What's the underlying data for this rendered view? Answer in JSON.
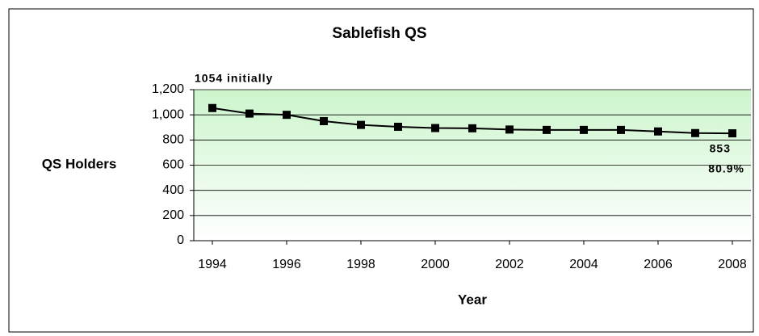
{
  "chart_data": {
    "type": "line",
    "title": "Sablefish QS",
    "ylabel": "QS Holders",
    "xlabel": "Year",
    "x": [
      1994,
      1995,
      1996,
      1997,
      1998,
      1999,
      2000,
      2001,
      2002,
      2003,
      2004,
      2005,
      2006,
      2007,
      2008
    ],
    "values": [
      1054,
      1010,
      1000,
      950,
      920,
      905,
      895,
      893,
      883,
      880,
      880,
      880,
      868,
      855,
      853
    ],
    "color": "#000000",
    "xlim": [
      1993.5,
      2008.5
    ],
    "xticks": [
      1994,
      1996,
      1998,
      2000,
      2002,
      2004,
      2006,
      2008
    ],
    "ylim": [
      0,
      1200
    ],
    "yticks": [
      0,
      200,
      400,
      600,
      800,
      {
        "value": 1000,
        "label": "1,000"
      },
      {
        "value": 1200,
        "label": "1,200"
      }
    ],
    "grid": true,
    "annotations": [
      "1054 initially",
      "853",
      "80.9%"
    ]
  }
}
